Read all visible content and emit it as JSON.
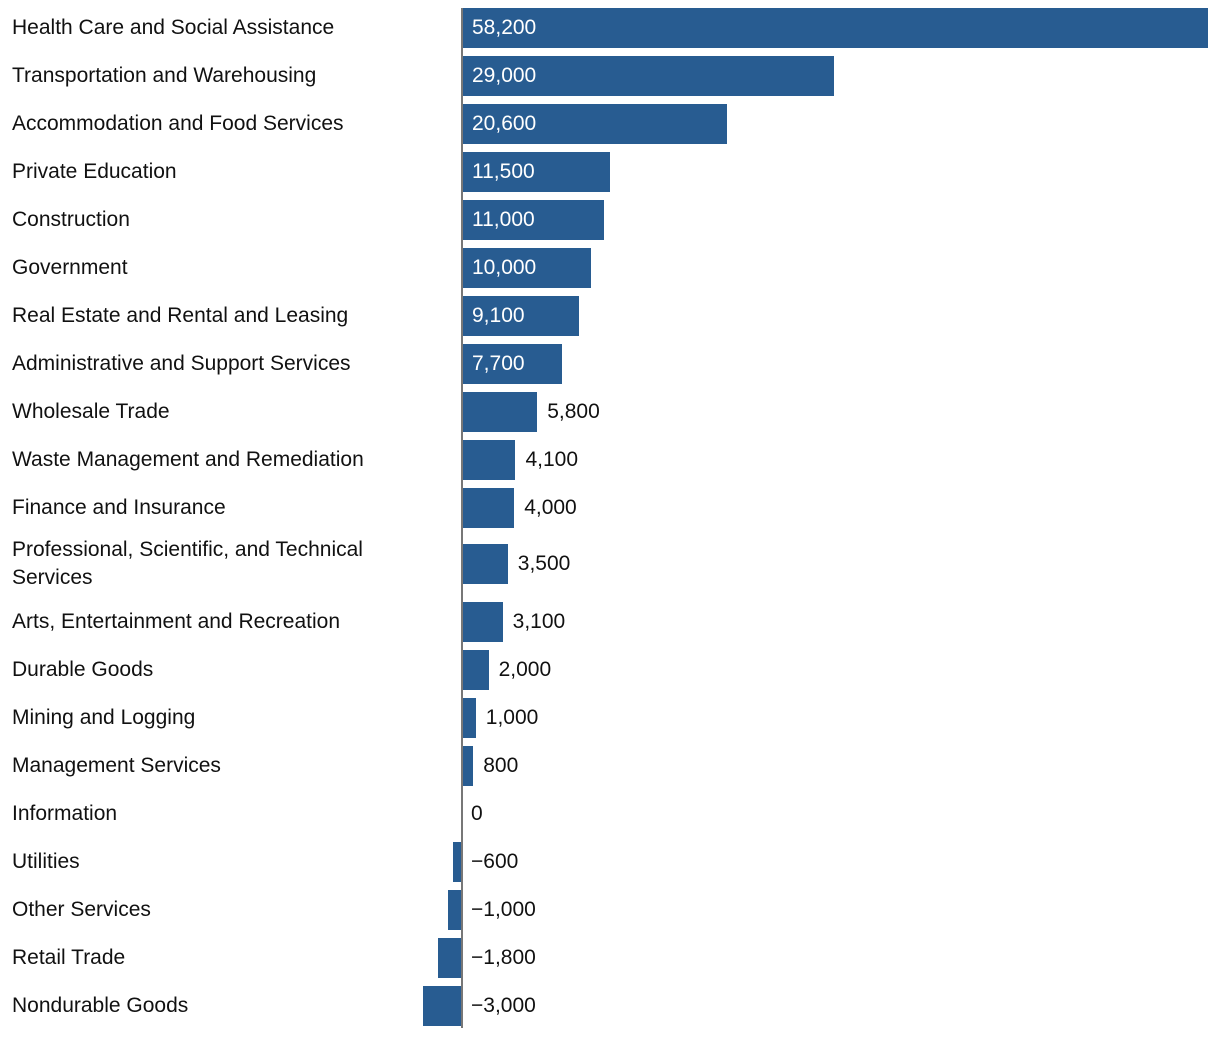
{
  "chart_data": {
    "type": "bar",
    "orientation": "horizontal",
    "title": "",
    "xlabel": "",
    "ylabel": "",
    "bar_color": "#285c91",
    "axis_color": "#777777",
    "categories": [
      "Health Care and Social Assistance",
      "Transportation and Warehousing",
      "Accommodation and Food Services",
      "Private Education",
      "Construction",
      "Government",
      "Real Estate and Rental and Leasing",
      "Administrative and Support Services",
      "Wholesale Trade",
      "Waste Management and Remediation",
      "Finance and Insurance",
      "Professional, Scientific, and Technical Services",
      "Arts, Entertainment and Recreation",
      "Durable Goods",
      "Mining and Logging",
      "Management Services",
      "Information",
      "Utilities",
      "Other Services",
      "Retail Trade",
      "Nondurable Goods"
    ],
    "values": [
      58200,
      29000,
      20600,
      11500,
      11000,
      10000,
      9100,
      7700,
      5800,
      4100,
      4000,
      3500,
      3100,
      2000,
      1000,
      800,
      0,
      -600,
      -1000,
      -1800,
      -3000
    ],
    "value_labels": [
      "58,200",
      "29,000",
      "20,600",
      "11,500",
      "11,000",
      "10,000",
      "9,100",
      "7,700",
      "5,800",
      "4,100",
      "4,000",
      "3,500",
      "3,100",
      "2,000",
      "1,000",
      "800",
      "0",
      "−600",
      "−1,000",
      "−1,800",
      "−3,000"
    ],
    "xlim": [
      -3000,
      58200
    ],
    "grid": false,
    "legend": "none"
  }
}
